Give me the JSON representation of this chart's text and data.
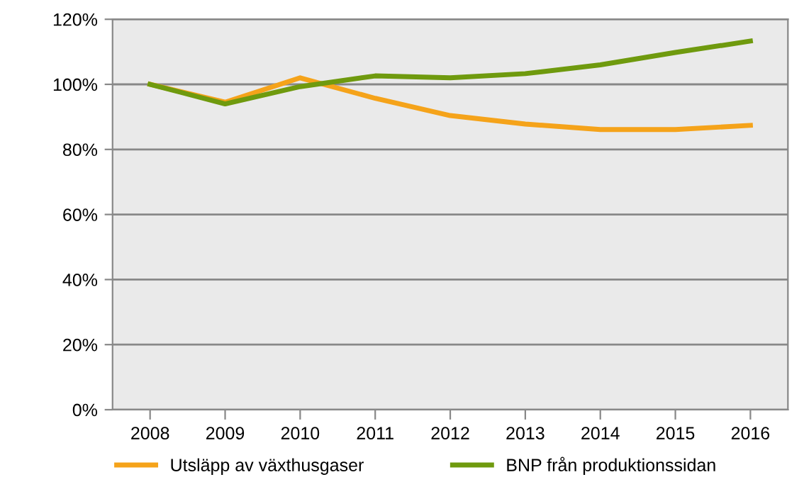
{
  "chart_data": {
    "type": "line",
    "categories": [
      "2008",
      "2009",
      "2010",
      "2011",
      "2012",
      "2013",
      "2014",
      "2015",
      "2016"
    ],
    "series": [
      {
        "name": "Utsläpp av växthusgaser",
        "color": "#f5a31a",
        "values": [
          100,
          94.5,
          102,
          95.7,
          90.4,
          87.8,
          86.1,
          86.1,
          87.4
        ]
      },
      {
        "name": "BNP från produktionssidan",
        "color": "#6f9a0e",
        "values": [
          100,
          94,
          99.3,
          102.6,
          102,
          103.3,
          106,
          109.8,
          113.3
        ]
      }
    ],
    "ylim": [
      0,
      120
    ],
    "yticks": [
      {
        "value": 0,
        "label": "0%"
      },
      {
        "value": 20,
        "label": "20%"
      },
      {
        "value": 40,
        "label": "40%"
      },
      {
        "value": 60,
        "label": "60%"
      },
      {
        "value": 80,
        "label": "80%"
      },
      {
        "value": 100,
        "label": "100%"
      },
      {
        "value": 120,
        "label": "120%"
      }
    ],
    "grid": "y",
    "legend": "bottom",
    "marker": "none",
    "line_style": "solid"
  }
}
